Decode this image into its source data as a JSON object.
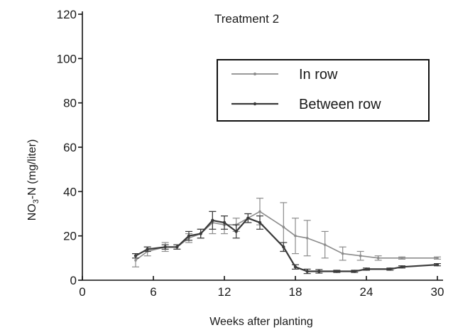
{
  "chart_data": {
    "type": "line",
    "title": "Treatment 2",
    "xlabel": "Weeks after planting",
    "ylabel": "NO₃-N (mg/liter)",
    "xlim": [
      0,
      30
    ],
    "ylim": [
      0,
      120
    ],
    "xticks": [
      0,
      6,
      12,
      18,
      24,
      30
    ],
    "yticks": [
      0,
      20,
      40,
      60,
      80,
      100,
      120
    ],
    "grid": false,
    "legend": "upper-right",
    "series": [
      {
        "name": "In row",
        "color": "#8c8c8c",
        "points": [
          {
            "x": 4.5,
            "y": 9,
            "err": 3
          },
          {
            "x": 5.5,
            "y": 13,
            "err": 2
          },
          {
            "x": 7,
            "y": 15,
            "err": 2
          },
          {
            "x": 8,
            "y": 15,
            "err": 1
          },
          {
            "x": 9,
            "y": 19,
            "err": 2
          },
          {
            "x": 10,
            "y": 21,
            "err": 2
          },
          {
            "x": 11,
            "y": 26,
            "err": 5
          },
          {
            "x": 12,
            "y": 25,
            "err": 4
          },
          {
            "x": 13,
            "y": 25,
            "err": 3
          },
          {
            "x": 14,
            "y": 28,
            "err": 2
          },
          {
            "x": 15,
            "y": 31,
            "err": 6
          },
          {
            "x": 17,
            "y": 24,
            "err": 11
          },
          {
            "x": 18,
            "y": 20,
            "err": 8
          },
          {
            "x": 19,
            "y": 19,
            "err": 8
          },
          {
            "x": 20.5,
            "y": 16,
            "err": 6
          },
          {
            "x": 22,
            "y": 12,
            "err": 3
          },
          {
            "x": 23.5,
            "y": 11,
            "err": 2
          },
          {
            "x": 25,
            "y": 10,
            "err": 1
          },
          {
            "x": 27,
            "y": 10,
            "err": 0.5
          },
          {
            "x": 30,
            "y": 10,
            "err": 0.5
          }
        ]
      },
      {
        "name": "Between row",
        "color": "#3a3a3a",
        "points": [
          {
            "x": 4.5,
            "y": 11,
            "err": 1
          },
          {
            "x": 5.5,
            "y": 14,
            "err": 1
          },
          {
            "x": 7,
            "y": 15,
            "err": 1
          },
          {
            "x": 8,
            "y": 15,
            "err": 1
          },
          {
            "x": 9,
            "y": 20,
            "err": 2
          },
          {
            "x": 10,
            "y": 21,
            "err": 2
          },
          {
            "x": 11,
            "y": 27,
            "err": 4
          },
          {
            "x": 12,
            "y": 26,
            "err": 3
          },
          {
            "x": 13,
            "y": 22,
            "err": 3
          },
          {
            "x": 14,
            "y": 28,
            "err": 2
          },
          {
            "x": 15,
            "y": 26,
            "err": 3
          },
          {
            "x": 17,
            "y": 15,
            "err": 2
          },
          {
            "x": 18,
            "y": 6,
            "err": 1
          },
          {
            "x": 19,
            "y": 4,
            "err": 1
          },
          {
            "x": 20,
            "y": 4,
            "err": 0.8
          },
          {
            "x": 21.5,
            "y": 4,
            "err": 0.5
          },
          {
            "x": 23,
            "y": 4,
            "err": 0.5
          },
          {
            "x": 24,
            "y": 5,
            "err": 0.5
          },
          {
            "x": 26,
            "y": 5,
            "err": 0.5
          },
          {
            "x": 27,
            "y": 6,
            "err": 0.5
          },
          {
            "x": 30,
            "y": 7,
            "err": 0.5
          }
        ]
      }
    ]
  }
}
